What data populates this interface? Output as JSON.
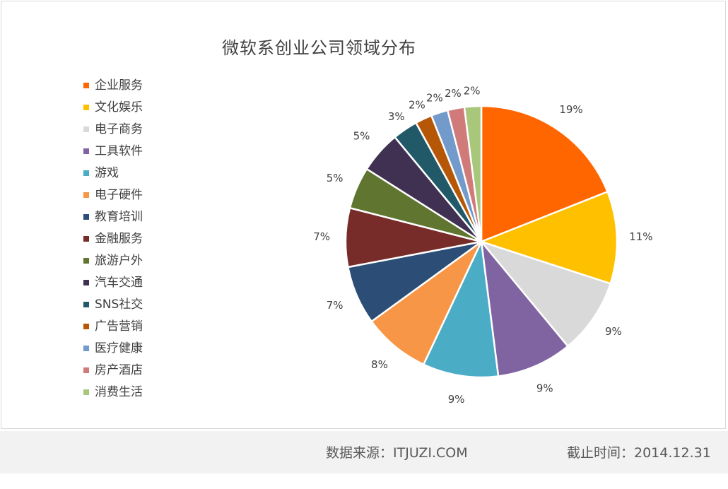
{
  "chart_data": {
    "type": "pie",
    "title": "微软系创业公司领域分布",
    "legend_position": "left",
    "categories": [
      "企业服务",
      "文化娱乐",
      "电子商务",
      "工具软件",
      "游戏",
      "电子硬件",
      "教育培训",
      "金融服务",
      "旅游户外",
      "汽车交通",
      "SNS社交",
      "广告营销",
      "医疗健康",
      "房产酒店",
      "消费生活"
    ],
    "values": [
      19,
      11,
      9,
      9,
      9,
      8,
      7,
      7,
      5,
      5,
      3,
      2,
      2,
      2,
      2
    ],
    "labels": [
      "19%",
      "11%",
      "9%",
      "9%",
      "9%",
      "8%",
      "7%",
      "7%",
      "5%",
      "5%",
      "3%",
      "2%",
      "2%",
      "2%",
      "2%"
    ],
    "colors": [
      "#ff6600",
      "#ffc000",
      "#d9d9d9",
      "#8064a2",
      "#4bacc6",
      "#f79646",
      "#2c4d75",
      "#772c2a",
      "#5f7530",
      "#403152",
      "#215968",
      "#b65708",
      "#729aca",
      "#d07b7a",
      "#a9c77a"
    ]
  },
  "footer": {
    "source": "数据来源：ITJUZI.COM",
    "date": "截止时间：2014.12.31"
  }
}
